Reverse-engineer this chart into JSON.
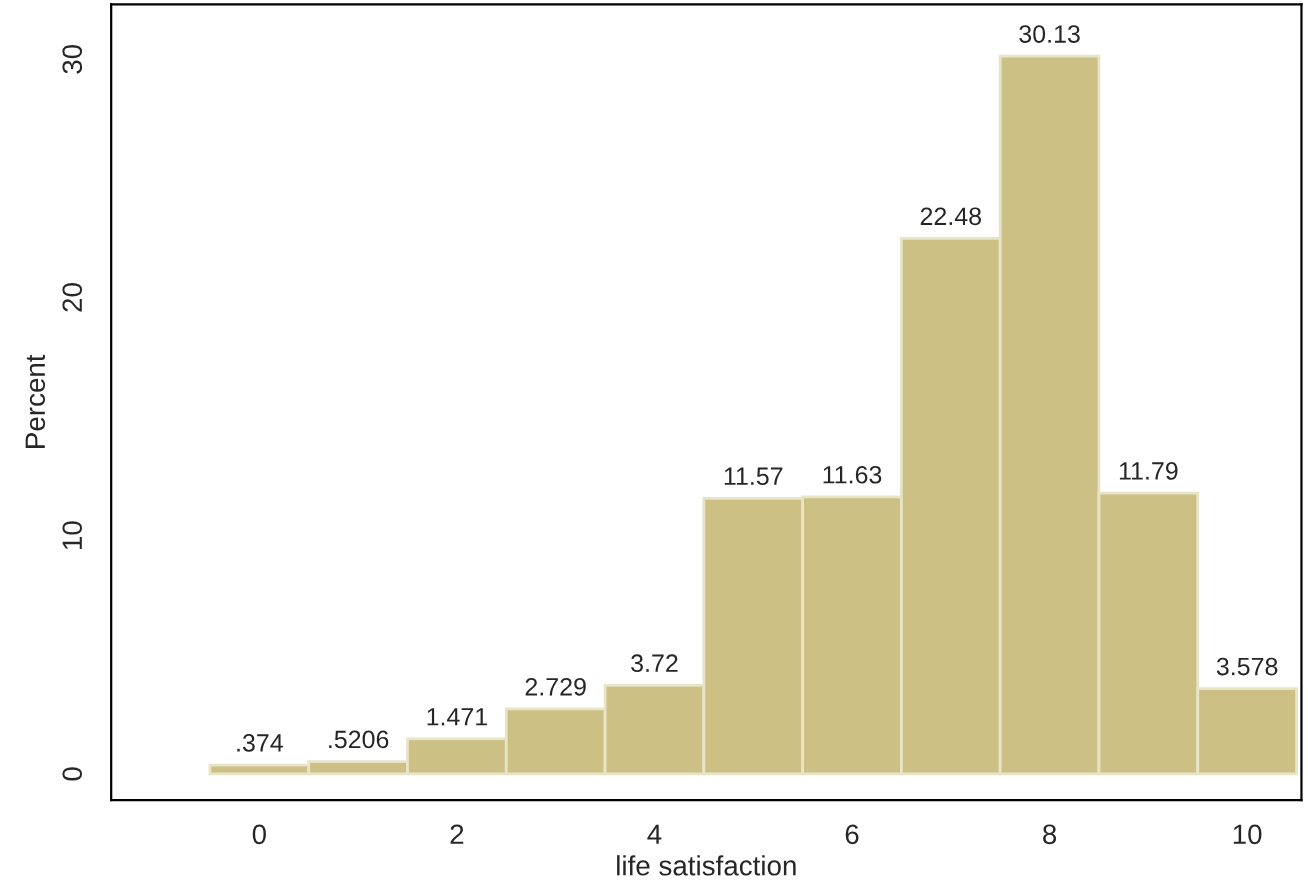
{
  "chart_data": {
    "type": "histogram",
    "xlabel": "life satisfaction",
    "ylabel": "Percent",
    "bins": [
      -0.5,
      0.5,
      1.5,
      2.5,
      3.5,
      4.5,
      5.5,
      6.5,
      7.5,
      8.5,
      9.5,
      10.5
    ],
    "values": [
      0.374,
      0.5206,
      1.471,
      2.729,
      3.72,
      11.57,
      11.63,
      22.48,
      30.13,
      11.79,
      3.578
    ],
    "value_labels": [
      ".374",
      ".5206",
      "1.471",
      "2.729",
      "3.72",
      "11.57",
      "11.63",
      "22.48",
      "30.13",
      "11.79",
      "3.578"
    ],
    "color": "#cdc084",
    "xlim": [
      -1.5,
      10.55
    ],
    "ylim": [
      -1.1,
      32.3
    ],
    "xticks": [
      0,
      2,
      4,
      6,
      8,
      10
    ],
    "yticks": [
      0,
      10,
      20,
      30
    ],
    "grid": false,
    "legend": false
  }
}
